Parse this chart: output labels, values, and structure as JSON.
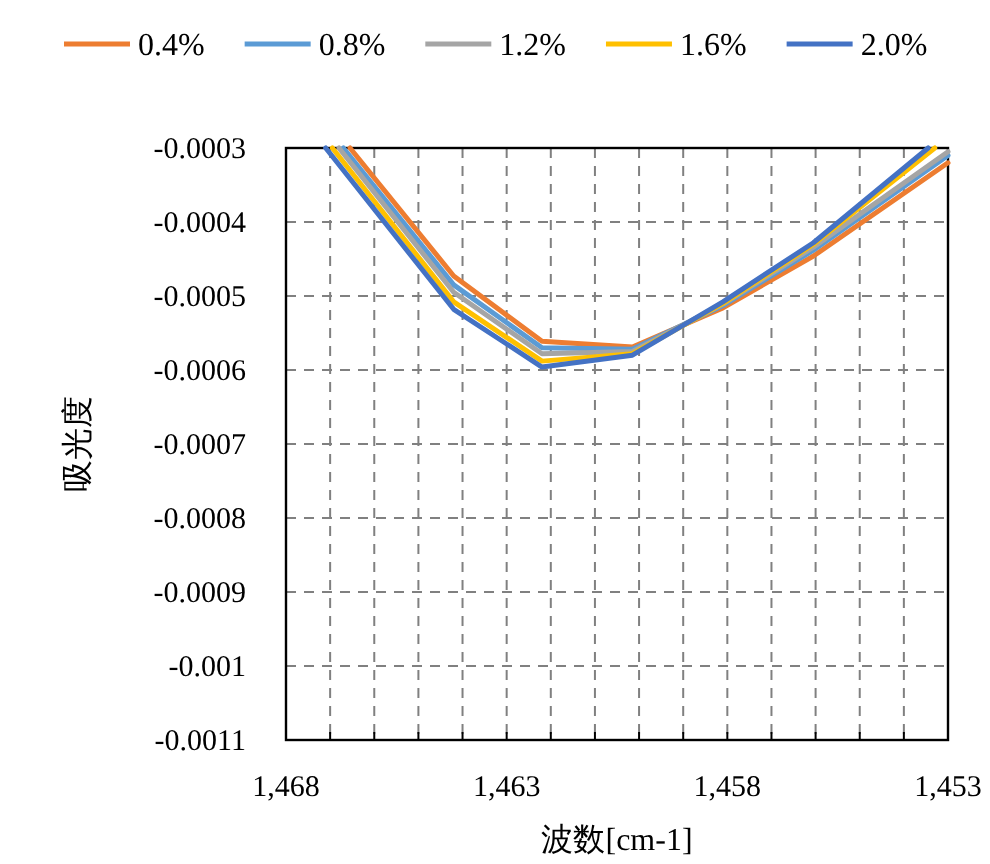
{
  "chart_data": {
    "type": "line",
    "xlabel": "波数[cm-1]",
    "ylabel": "吸光度",
    "legend": "top",
    "grid": true,
    "marker": "none",
    "line_style": "solid",
    "xlim": [
      1468,
      1453
    ],
    "xticks": [
      {
        "value": 1468,
        "label": "1,468"
      },
      {
        "value": 1467,
        "label": null
      },
      {
        "value": 1466,
        "label": null
      },
      {
        "value": 1465,
        "label": null
      },
      {
        "value": 1464,
        "label": null
      },
      {
        "value": 1463,
        "label": "1,463"
      },
      {
        "value": 1462,
        "label": null
      },
      {
        "value": 1461,
        "label": null
      },
      {
        "value": 1460,
        "label": null
      },
      {
        "value": 1459,
        "label": null
      },
      {
        "value": 1458,
        "label": "1,458"
      },
      {
        "value": 1457,
        "label": null
      },
      {
        "value": 1456,
        "label": null
      },
      {
        "value": 1455,
        "label": null
      },
      {
        "value": 1454,
        "label": null
      },
      {
        "value": 1453,
        "label": "1,453"
      }
    ],
    "ylim": [
      -0.0011,
      -0.0003
    ],
    "yticks": [
      -0.0011,
      -0.001,
      -0.0009,
      -0.0008,
      -0.0007,
      -0.0006,
      -0.0005,
      -0.0004,
      -0.0003
    ],
    "series": [
      {
        "name": "0.4%",
        "color": "#ed7d31",
        "x": [
          1466.55,
          1464.2,
          1462.2,
          1460.15,
          1458.1,
          1456.05,
          1453
        ],
        "values": [
          -0.0003,
          -0.000473,
          -0.000561,
          -0.000569,
          -0.000516,
          -0.000446,
          -0.00032
        ]
      },
      {
        "name": "0.8%",
        "color": "#5b9bd5",
        "x": [
          1466.7,
          1464.2,
          1462.2,
          1460.15,
          1458.1,
          1456.05,
          1453
        ],
        "values": [
          -0.0003,
          -0.000485,
          -0.00057,
          -0.000572,
          -0.000513,
          -0.000438,
          -0.00031
        ]
      },
      {
        "name": "1.2%",
        "color": "#a5a5a5",
        "x": [
          1466.8,
          1464.2,
          1462.2,
          1460.15,
          1458.1,
          1456.05,
          1453
        ],
        "values": [
          -0.0003,
          -0.000495,
          -0.000578,
          -0.000575,
          -0.000511,
          -0.000434,
          -0.000305
        ]
      },
      {
        "name": "1.6%",
        "color": "#ffc000",
        "x": [
          1466.95,
          1464.2,
          1462.2,
          1460.15,
          1458.1,
          1456.05,
          1453.3
        ],
        "values": [
          -0.0003,
          -0.000508,
          -0.000588,
          -0.000578,
          -0.00051,
          -0.00043,
          -0.0003
        ]
      },
      {
        "name": "2.0%",
        "color": "#4472c4",
        "x": [
          1467.1,
          1464.2,
          1462.2,
          1460.15,
          1458.1,
          1456.05,
          1453.45
        ],
        "values": [
          -0.0003,
          -0.000518,
          -0.000596,
          -0.00058,
          -0.000508,
          -0.000428,
          -0.0003
        ]
      }
    ]
  }
}
